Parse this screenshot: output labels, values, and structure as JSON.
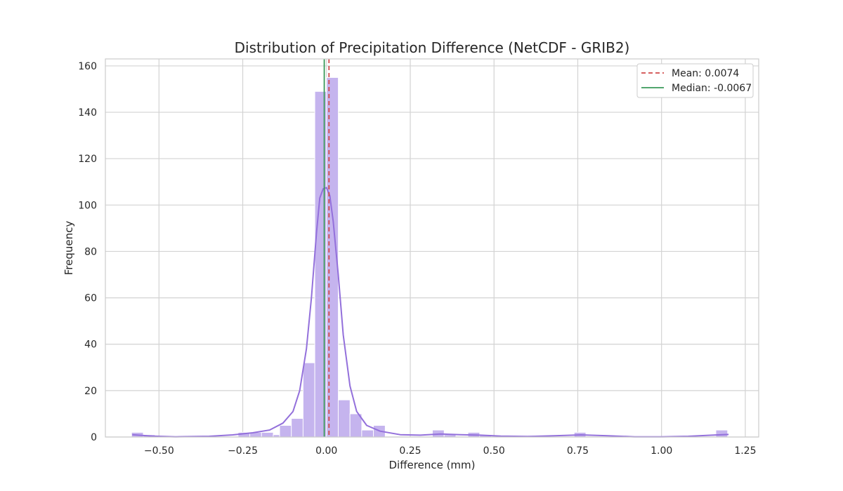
{
  "chart_data": {
    "type": "bar",
    "title": "Distribution of Precipitation Difference (NetCDF - GRIB2)",
    "xlabel": "Difference (mm)",
    "ylabel": "Frequency",
    "xlim": [
      -0.66,
      1.29
    ],
    "ylim": [
      0,
      163
    ],
    "grid": true,
    "legend_position": "top-right",
    "x_ticks": [
      -0.5,
      -0.25,
      0.0,
      0.25,
      0.5,
      0.75,
      1.0,
      1.25
    ],
    "x_tick_labels": [
      "−0.50",
      "−0.25",
      "0.00",
      "0.25",
      "0.50",
      "0.75",
      "1.00",
      "1.25"
    ],
    "y_ticks": [
      0,
      20,
      40,
      60,
      80,
      100,
      120,
      140,
      160
    ],
    "y_tick_labels": [
      "0",
      "20",
      "40",
      "60",
      "80",
      "100",
      "120",
      "140",
      "160"
    ],
    "bin_width": 0.0353,
    "bins": [
      {
        "x0": -0.582,
        "count": 2
      },
      {
        "x0": -0.547,
        "count": 1
      },
      {
        "x0": -0.512,
        "count": 0
      },
      {
        "x0": -0.476,
        "count": 0
      },
      {
        "x0": -0.441,
        "count": 0
      },
      {
        "x0": -0.406,
        "count": 0
      },
      {
        "x0": -0.37,
        "count": 0
      },
      {
        "x0": -0.335,
        "count": 0
      },
      {
        "x0": -0.3,
        "count": 0
      },
      {
        "x0": -0.264,
        "count": 2
      },
      {
        "x0": -0.229,
        "count": 2
      },
      {
        "x0": -0.194,
        "count": 2
      },
      {
        "x0": -0.159,
        "count": 1
      },
      {
        "x0": -0.14,
        "count": 5
      },
      {
        "x0": -0.105,
        "count": 8
      },
      {
        "x0": -0.07,
        "count": 32
      },
      {
        "x0": -0.035,
        "count": 149
      },
      {
        "x0": 0.0,
        "count": 155
      },
      {
        "x0": 0.035,
        "count": 16
      },
      {
        "x0": 0.07,
        "count": 10
      },
      {
        "x0": 0.105,
        "count": 3
      },
      {
        "x0": 0.14,
        "count": 5
      },
      {
        "x0": 0.175,
        "count": 0
      },
      {
        "x0": 0.21,
        "count": 0
      },
      {
        "x0": 0.245,
        "count": 0
      },
      {
        "x0": 0.281,
        "count": 0
      },
      {
        "x0": 0.316,
        "count": 3
      },
      {
        "x0": 0.351,
        "count": 1
      },
      {
        "x0": 0.386,
        "count": 0
      },
      {
        "x0": 0.422,
        "count": 2
      },
      {
        "x0": 0.457,
        "count": 1
      },
      {
        "x0": 0.492,
        "count": 0
      },
      {
        "x0": 0.527,
        "count": 0
      },
      {
        "x0": 0.563,
        "count": 0
      },
      {
        "x0": 0.598,
        "count": 0
      },
      {
        "x0": 0.633,
        "count": 0
      },
      {
        "x0": 0.668,
        "count": 0
      },
      {
        "x0": 0.704,
        "count": 0
      },
      {
        "x0": 0.739,
        "count": 2
      },
      {
        "x0": 0.774,
        "count": 0
      },
      {
        "x0": 0.809,
        "count": 0
      },
      {
        "x0": 0.845,
        "count": 0
      },
      {
        "x0": 0.88,
        "count": 0
      },
      {
        "x0": 0.915,
        "count": 0
      },
      {
        "x0": 0.95,
        "count": 0
      },
      {
        "x0": 0.986,
        "count": 0
      },
      {
        "x0": 1.021,
        "count": 0
      },
      {
        "x0": 1.056,
        "count": 0
      },
      {
        "x0": 1.091,
        "count": 0
      },
      {
        "x0": 1.127,
        "count": 0
      },
      {
        "x0": 1.162,
        "count": 3
      }
    ],
    "kde": [
      [
        -0.58,
        1.0
      ],
      [
        -0.52,
        0.4
      ],
      [
        -0.45,
        0.1
      ],
      [
        -0.35,
        0.3
      ],
      [
        -0.28,
        0.9
      ],
      [
        -0.22,
        1.8
      ],
      [
        -0.17,
        3.0
      ],
      [
        -0.13,
        6.0
      ],
      [
        -0.1,
        11.0
      ],
      [
        -0.08,
        20.0
      ],
      [
        -0.06,
        38.0
      ],
      [
        -0.045,
        60.0
      ],
      [
        -0.03,
        88.0
      ],
      [
        -0.02,
        103.0
      ],
      [
        -0.01,
        107.0
      ],
      [
        0.0,
        107.5
      ],
      [
        0.01,
        104.0
      ],
      [
        0.02,
        93.0
      ],
      [
        0.035,
        70.0
      ],
      [
        0.05,
        44.0
      ],
      [
        0.07,
        22.0
      ],
      [
        0.09,
        11.0
      ],
      [
        0.12,
        5.0
      ],
      [
        0.16,
        2.5
      ],
      [
        0.22,
        1.0
      ],
      [
        0.28,
        0.8
      ],
      [
        0.34,
        1.3
      ],
      [
        0.4,
        1.0
      ],
      [
        0.46,
        0.8
      ],
      [
        0.52,
        0.4
      ],
      [
        0.6,
        0.2
      ],
      [
        0.68,
        0.5
      ],
      [
        0.76,
        0.9
      ],
      [
        0.84,
        0.5
      ],
      [
        0.92,
        0.1
      ],
      [
        1.0,
        0.1
      ],
      [
        1.08,
        0.3
      ],
      [
        1.15,
        0.8
      ],
      [
        1.2,
        1.1
      ]
    ],
    "mean": 0.0074,
    "median": -0.0067,
    "legend": {
      "mean_label": "Mean: 0.0074",
      "median_label": "Median: -0.0067"
    },
    "colors": {
      "bars": "#c5b4ee",
      "bar_edge": "#ffffff",
      "kde": "#9370db",
      "mean": "#d04a4a",
      "median": "#3a9a5a",
      "grid": "#d3d3d3"
    }
  }
}
